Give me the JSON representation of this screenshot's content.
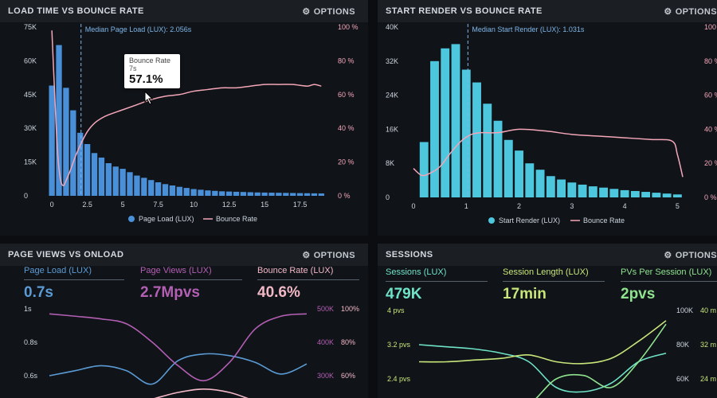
{
  "panels": {
    "load_time": {
      "title": "LOAD TIME VS BOUNCE RATE",
      "options_label": "OPTIONS",
      "median_label": "Median Page Load (LUX): 2.056s",
      "tooltip": {
        "title": "Bounce Rate",
        "sub": "7s",
        "value": "57.1%"
      },
      "legend": {
        "bars": "Page Load (LUX)",
        "line": "Bounce Rate"
      }
    },
    "start_render": {
      "title": "START RENDER VS BOUNCE RATE",
      "options_label": "OPTIONS",
      "median_label": "Median Start Render (LUX): 1.031s",
      "legend": {
        "bars": "Start Render (LUX)",
        "line": "Bounce Rate"
      }
    },
    "page_views": {
      "title": "PAGE VIEWS VS ONLOAD",
      "options_label": "OPTIONS",
      "metrics": [
        {
          "label": "Page Load (LUX)",
          "value": "0.7s",
          "color": "#5b9bd5"
        },
        {
          "label": "Page Views (LUX)",
          "value": "2.7Mpvs",
          "color": "#b35fb3"
        },
        {
          "label": "Bounce Rate (LUX)",
          "value": "40.6%",
          "color": "#f2b8c6"
        }
      ]
    },
    "sessions": {
      "title": "SESSIONS",
      "options_label": "OPTIONS",
      "metrics": [
        {
          "label": "Sessions (LUX)",
          "value": "479K",
          "color": "#6fe3c8"
        },
        {
          "label": "Session Length (LUX)",
          "value": "17min",
          "color": "#c8e67a"
        },
        {
          "label": "PVs Per Session (LUX)",
          "value": "2pvs",
          "color": "#8fe38f"
        }
      ]
    }
  },
  "colors": {
    "bar_blue": "#4a90d9",
    "bar_cyan": "#4cc7de",
    "line_pink": "#f4a6b8"
  },
  "chart_data": [
    {
      "type": "bar",
      "title": "LOAD TIME VS BOUNCE RATE",
      "y_ticks": [
        "0",
        "15K",
        "30K",
        "45K",
        "60K",
        "75K"
      ],
      "y2_ticks": [
        "0 %",
        "20 %",
        "40 %",
        "60 %",
        "80 %",
        "100 %"
      ],
      "x_ticks": [
        "0",
        "2.5",
        "5",
        "7.5",
        "10",
        "12.5",
        "15",
        "17.5"
      ],
      "xlim": [
        -0.4,
        19.6
      ],
      "ylim": [
        0,
        75000
      ],
      "median_x": 2.056,
      "bar_x": [
        0,
        0.5,
        1,
        1.5,
        2,
        2.5,
        3,
        3.5,
        4,
        4.5,
        5,
        5.5,
        6,
        6.5,
        7,
        7.5,
        8,
        8.5,
        9,
        9.5,
        10,
        10.5,
        11,
        11.5,
        12,
        12.5,
        13,
        13.5,
        14,
        14.5,
        15,
        15.5,
        16,
        16.5,
        17,
        17.5,
        18,
        18.5,
        19
      ],
      "bar_values": [
        49000,
        67000,
        48000,
        38000,
        28000,
        23000,
        19000,
        17000,
        14500,
        13000,
        12000,
        10500,
        9000,
        8000,
        7000,
        6000,
        5200,
        4600,
        4000,
        3500,
        3000,
        2700,
        2400,
        2200,
        2000,
        1900,
        1800,
        1700,
        1600,
        1500,
        1450,
        1400,
        1350,
        1300,
        1250,
        1200,
        1150,
        1100,
        1050
      ],
      "series": [
        {
          "name": "Page Load (LUX)",
          "type": "bar"
        },
        {
          "name": "Bounce Rate",
          "type": "line",
          "x": [
            0,
            0.2,
            0.4,
            0.6,
            0.8,
            1.0,
            1.3,
            1.6,
            2.0,
            2.5,
            3,
            3.5,
            4,
            5,
            6,
            7,
            8,
            9,
            10,
            11,
            12,
            13,
            14,
            15,
            16,
            17,
            18,
            18.5,
            19
          ],
          "y": [
            98,
            60,
            26,
            10,
            6,
            9,
            15,
            22,
            30,
            38,
            43,
            46,
            48,
            51,
            54,
            57,
            59,
            60,
            62,
            63,
            64,
            64,
            65,
            66,
            66,
            66,
            65,
            66,
            65
          ]
        }
      ]
    },
    {
      "type": "bar",
      "title": "START RENDER VS BOUNCE RATE",
      "y_ticks": [
        "0",
        "8K",
        "16K",
        "24K",
        "32K",
        "40K"
      ],
      "y2_ticks": [
        "0 %",
        "20 %",
        "40 %",
        "60 %",
        "80 %",
        "100 %"
      ],
      "x_ticks": [
        "0",
        "1",
        "2",
        "3",
        "4",
        "5"
      ],
      "xlim": [
        0,
        5.1
      ],
      "ylim": [
        0,
        40000
      ],
      "median_x": 1.031,
      "bar_x": [
        0.2,
        0.4,
        0.6,
        0.8,
        1.0,
        1.2,
        1.4,
        1.6,
        1.8,
        2.0,
        2.2,
        2.4,
        2.6,
        2.8,
        3.0,
        3.2,
        3.4,
        3.6,
        3.8,
        4.0,
        4.2,
        4.4,
        4.6,
        4.8,
        5.0
      ],
      "bar_values": [
        13000,
        32000,
        35000,
        36000,
        30000,
        27000,
        22000,
        18000,
        13500,
        11000,
        8000,
        6500,
        5000,
        4200,
        3500,
        3000,
        2600,
        2300,
        2000,
        1700,
        1500,
        1300,
        1100,
        900,
        700
      ],
      "series": [
        {
          "name": "Start Render (LUX)",
          "type": "bar"
        },
        {
          "name": "Bounce Rate",
          "type": "line",
          "x": [
            0,
            0.15,
            0.3,
            0.5,
            0.7,
            0.9,
            1.1,
            1.3,
            1.6,
            2.0,
            2.5,
            3.0,
            3.5,
            4.0,
            4.5,
            4.9,
            5.0,
            5.1
          ],
          "y": [
            17,
            13,
            14,
            18,
            26,
            33,
            37,
            38,
            38,
            40,
            39,
            37,
            36,
            35,
            34,
            33,
            25,
            12
          ]
        }
      ]
    },
    {
      "type": "line",
      "title": "PAGE VIEWS VS ONLOAD",
      "y_ticks": [
        "0.6s",
        "0.8s",
        "1s"
      ],
      "y2_ticks": [
        "300K",
        "400K",
        "500K"
      ],
      "y3_ticks": [
        "60%",
        "80%",
        "100%"
      ],
      "series": [
        {
          "name": "Page Load (LUX)",
          "x": [
            0,
            1,
            2,
            3,
            4,
            5,
            6,
            7,
            8,
            9,
            10
          ],
          "y": [
            0.6,
            0.63,
            0.66,
            0.63,
            0.55,
            0.69,
            0.73,
            0.72,
            0.68,
            0.61,
            0.67
          ]
        },
        {
          "name": "Page Views (LUX)",
          "x": [
            0,
            1,
            2,
            3,
            4,
            5,
            6,
            7,
            8,
            9,
            10
          ],
          "y": [
            485,
            478,
            470,
            455,
            400,
            330,
            285,
            340,
            440,
            478,
            485
          ]
        },
        {
          "name": "Bounce Rate (LUX)",
          "x": [
            0,
            1,
            2,
            3,
            4,
            5,
            6,
            7,
            8,
            9,
            10
          ],
          "y": [
            40,
            40,
            41,
            42,
            46,
            50,
            52,
            50,
            45,
            42,
            40
          ]
        }
      ]
    },
    {
      "type": "line",
      "title": "SESSIONS",
      "y_ticks": [
        "2.4 pvs",
        "3.2 pvs",
        "4 pvs"
      ],
      "y2_ticks": [
        "60K",
        "80K",
        "100K"
      ],
      "y3_ticks": [
        "24 m",
        "32 m",
        "40 m"
      ],
      "series": [
        {
          "name": "Sessions (LUX)",
          "x": [
            0,
            1,
            2,
            3,
            4,
            5,
            6,
            7,
            8,
            9
          ],
          "y": [
            3.2,
            3.15,
            3.1,
            3.0,
            2.8,
            2.2,
            2.1,
            2.3,
            2.8,
            3.0
          ]
        },
        {
          "name": "Session Length (LUX)",
          "x": [
            0,
            1,
            2,
            3,
            4,
            5,
            6,
            7,
            8,
            9
          ],
          "y": [
            10,
            10,
            11,
            12,
            14,
            10,
            9,
            12,
            22,
            34
          ]
        },
        {
          "name": "PVs Per Session (LUX)",
          "x": [
            0,
            1,
            2,
            3,
            4,
            5,
            6,
            7,
            8,
            9
          ],
          "y": [
            40,
            40,
            40,
            41,
            45,
            60,
            62,
            55,
            70,
            92
          ]
        }
      ]
    }
  ]
}
